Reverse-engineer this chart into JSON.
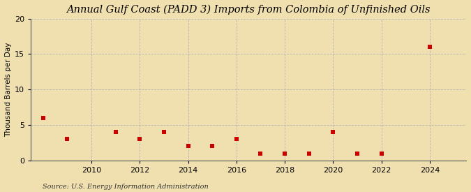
{
  "title": "Annual Gulf Coast (PADD 3) Imports from Colombia of Unfinished Oils",
  "ylabel": "Thousand Barrels per Day",
  "source": "Source: U.S. Energy Information Administration",
  "values_by_year": {
    "2008": 6.0,
    "2009": 3.0,
    "2011": 4.0,
    "2012": 3.0,
    "2013": 4.0,
    "2014": 2.0,
    "2015": 2.0,
    "2016": 3.0,
    "2017": 1.0,
    "2018": 1.0,
    "2019": 1.0,
    "2020": 4.0,
    "2021": 1.0,
    "2022": 1.0,
    "2024": 16.0
  },
  "marker_color": "#cc0000",
  "marker": "s",
  "marker_size": 4,
  "background_color": "#f0e0b0",
  "plot_bg_color": "#f0e0b0",
  "grid_color": "#b0b0b0",
  "grid_style": "--",
  "ylim": [
    0,
    20
  ],
  "yticks": [
    0,
    5,
    10,
    15,
    20
  ],
  "xlim": [
    2007.5,
    2025.5
  ],
  "xticks": [
    2010,
    2012,
    2014,
    2016,
    2018,
    2020,
    2022,
    2024
  ],
  "title_fontsize": 10.5,
  "ylabel_fontsize": 7.5,
  "tick_fontsize": 8,
  "source_fontsize": 7
}
